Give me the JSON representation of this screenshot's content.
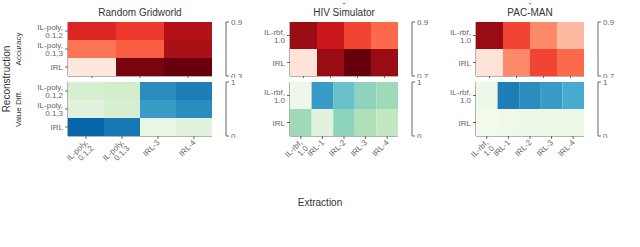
{
  "xlabel": "Extraction",
  "ylabel": "Reconstruction",
  "chart_data": [
    {
      "type": "heatmap",
      "title": "Random Gridworld",
      "ylabel": "Accuracy",
      "x_categories": [
        null,
        null,
        null
      ],
      "y_categories": [
        "IL-poly,\n0.1,2",
        "IL-poly,\n0.1,3",
        "IRL"
      ],
      "values": [
        [
          0.72,
          0.68,
          0.8
        ],
        [
          0.58,
          0.62,
          0.82
        ],
        [
          0.35,
          0.88,
          0.95
        ]
      ],
      "color": "Reds",
      "colorbar_range": [
        0.3,
        0.9
      ],
      "colorbar_ticks": [
        0.3,
        0.9
      ]
    },
    {
      "type": "heatmap",
      "ylabel": "Value Diff.",
      "x_categories": [
        "IL-poly,\n0.1,2",
        "IL-poly,\n0.1,3",
        "IRL-3",
        "IRL-4"
      ],
      "y_categories": [
        "IL-poly,\n0.1,2",
        "IL-poly,\n0.1,3",
        "IRL"
      ],
      "values": [
        [
          0.18,
          0.22,
          0.75,
          0.8
        ],
        [
          0.12,
          0.18,
          0.7,
          0.75
        ],
        [
          0.88,
          0.82,
          0.08,
          0.12
        ]
      ],
      "color": "GnBu",
      "colorbar_range": [
        0.0,
        1.0
      ],
      "colorbar_ticks": [
        0,
        1
      ]
    },
    {
      "type": "heatmap",
      "title": "HIV Simulator",
      "annotation": "·",
      "x_categories": [
        null,
        null,
        null,
        null
      ],
      "y_categories": [
        "IL-rbf,\n1.0",
        "IRL"
      ],
      "values": [
        [
          0.88,
          0.85,
          0.82,
          0.8
        ],
        [
          0.72,
          0.88,
          0.9,
          0.88
        ]
      ],
      "color": "Reds",
      "colorbar_range": [
        0.7,
        0.9
      ],
      "colorbar_ticks": [
        0.7,
        0.9
      ]
    },
    {
      "type": "heatmap",
      "x_categories": [
        "IL-rbf,\n1.0",
        "IRL-1",
        "IRL-2",
        "IRL-3",
        "IRL-4"
      ],
      "y_categories": [
        "IL-rbf,\n1.0",
        "IRL"
      ],
      "values": [
        [
          0.05,
          0.7,
          0.55,
          0.45,
          0.4
        ],
        [
          0.4,
          0.12,
          0.45,
          0.35,
          0.28
        ]
      ],
      "color": "GnBu",
      "colorbar_range": [
        0.0,
        1.0
      ],
      "colorbar_ticks": [
        0,
        1
      ]
    },
    {
      "type": "heatmap",
      "title": "PAC-MAN",
      "annotation": "·",
      "x_categories": [
        null,
        null,
        null,
        null
      ],
      "y_categories": [
        "IL-rbf,\n1.0",
        "IRL"
      ],
      "values": [
        [
          0.88,
          0.82,
          0.78,
          0.75
        ],
        [
          0.72,
          0.78,
          0.82,
          0.8
        ]
      ],
      "color": "Reds",
      "colorbar_range": [
        0.7,
        0.9
      ],
      "colorbar_ticks": [
        0.7,
        0.9
      ]
    },
    {
      "type": "heatmap",
      "x_categories": [
        "IL-rbf,\n1.0",
        "IRL-1",
        "IRL-2",
        "IRL-3",
        "IRL-4"
      ],
      "y_categories": [
        "IL-rbf,\n1.0",
        "IRL"
      ],
      "values": [
        [
          0.05,
          0.8,
          0.75,
          0.7,
          0.65
        ],
        [
          0.03,
          0.04,
          0.06,
          0.06,
          0.06
        ]
      ],
      "color": "GnBu",
      "colorbar_range": [
        0.0,
        1.0
      ],
      "colorbar_ticks": [
        0,
        1
      ]
    }
  ]
}
